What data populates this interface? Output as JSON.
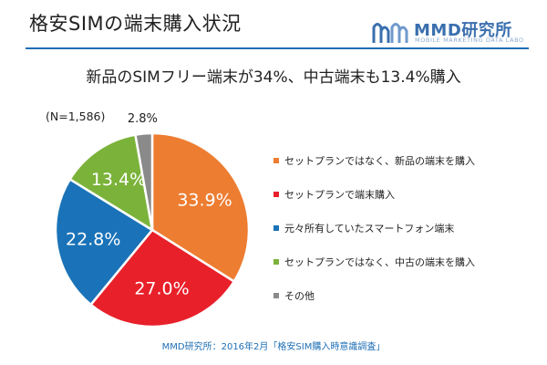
{
  "header": {
    "title": "格安SIMの端末購入状況",
    "logo_name": "MMD研究所",
    "logo_sub": "MOBILE MARKETING DATA LABO"
  },
  "headline": "新品のSIMフリー端末が34%、中古端末も13.4%購入",
  "source": "MMD研究所：2016年2月「格安SIM購入時意識調査」",
  "chart_data": {
    "type": "pie",
    "title": "",
    "note": "(N=1,586)",
    "start_angle_deg": 0,
    "direction": "clockwise",
    "legend_position": "right",
    "slices": [
      {
        "label": "セットプランではなく、新品の端末を購入",
        "value": 33.9,
        "display": "33.9%",
        "color": "#ed7d31"
      },
      {
        "label": "セットプランで端末購入",
        "value": 27.0,
        "display": "27.0%",
        "color": "#e8202a"
      },
      {
        "label": "元々所有していたスマートフォン端末",
        "value": 22.8,
        "display": "22.8%",
        "color": "#1a73b8"
      },
      {
        "label": "セットプランではなく、中古の端末を購入",
        "value": 13.4,
        "display": "13.4%",
        "color": "#7bb33a"
      },
      {
        "label": "その他",
        "value": 2.8,
        "display": "2.8%",
        "color": "#8a8a8a"
      }
    ]
  }
}
